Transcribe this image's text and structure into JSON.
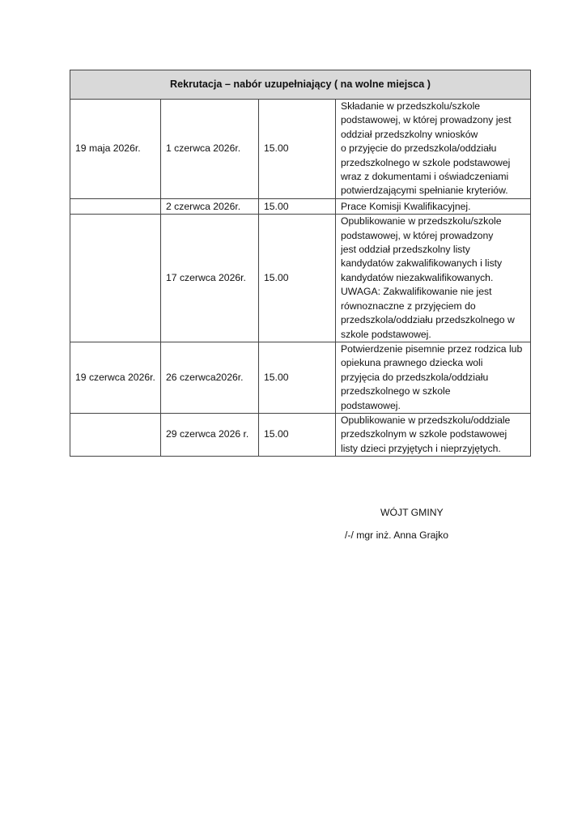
{
  "table": {
    "title": "Rekrutacja – nabór uzupełniający ( na wolne miejsca )",
    "rows": [
      {
        "from": "19 maja 2026r.",
        "to": "1 czerwca 2026r.",
        "time": "15.00",
        "desc": "Składanie w przedszkolu/szkole\npodstawowej, w której prowadzony jest\noddział przedszkolny wniosków\no przyjęcie do przedszkola/oddziału\nprzedszkolnego w szkole podstawowej\nwraz z dokumentami i oświadczeniami\npotwierdzającymi spełnianie kryteriów."
      },
      {
        "from": "",
        "to": "2 czerwca 2026r.",
        "time": "15.00",
        "desc": "Prace Komisji Kwalifikacyjnej.\n "
      },
      {
        "from": "",
        "to": "17 czerwca 2026r.",
        "time": "15.00",
        "desc": "Opublikowanie w  przedszkolu/szkole\npodstawowej, w której prowadzony\njest oddział przedszkolny listy\nkandydatów zakwalifikowanych i listy\nkandydatów niezakwalifikowanych.\nUWAGA: Zakwalifikowanie nie jest\nrównoznaczne z przyjęciem do\nprzedszkola/oddziału przedszkolnego w\nszkole podstawowej."
      },
      {
        "from": "19 czerwca 2026r.",
        "to": "26 czerwca2026r.",
        "time": "15.00",
        "desc": "Potwierdzenie pisemnie przez rodzica lub\nopiekuna prawnego dziecka woli\nprzyjęcia do przedszkola/oddziału\nprzedszkolnego w szkole\npodstawowej."
      },
      {
        "from": "",
        "to": "29 czerwca 2026 r.",
        "time": "15.00",
        "desc": "Opublikowanie w przedszkolu/oddziale\nprzedszkolnym w szkole podstawowej\nlisty dzieci przyjętych i nieprzyjętych."
      }
    ]
  },
  "signature": {
    "title": "WÓJT GMINY",
    "name": "/-/ mgr inż. Anna Grajko"
  }
}
